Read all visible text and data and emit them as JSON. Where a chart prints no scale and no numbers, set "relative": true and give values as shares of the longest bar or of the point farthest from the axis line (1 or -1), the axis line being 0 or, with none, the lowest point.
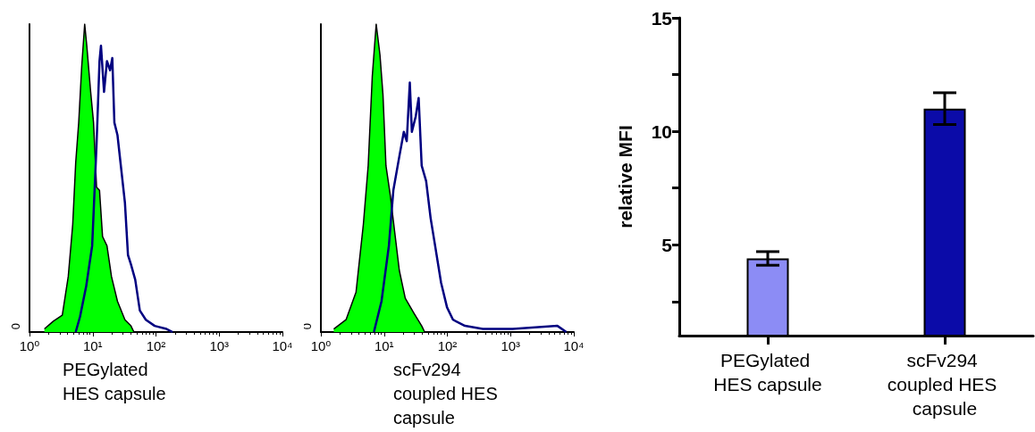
{
  "chart_data": [
    {
      "type": "area",
      "xlabel": "PEGylated HES capsule",
      "relative": true,
      "log": "x",
      "xlim": [
        1,
        10000
      ],
      "xticks": [
        {
          "value": 1,
          "label": "10⁰"
        },
        {
          "value": 10,
          "label": "10¹"
        },
        {
          "value": 100,
          "label": "10²"
        },
        {
          "value": 1000,
          "label": "10³"
        },
        {
          "value": 10000,
          "label": "10⁴"
        }
      ],
      "annotations": [
        "0"
      ],
      "grid": false,
      "series": [
        {
          "type": "area",
          "color": "#00ff00",
          "x": [
            1.72,
            2.38,
            3.3,
            4.1,
            4.83,
            5.38,
            6.0,
            6.69,
            7.46,
            8.05,
            9.27,
            10.3,
            11.5,
            12.8,
            14.3,
            16.8,
            19.8,
            24.6,
            32.3,
            40.2,
            44.8
          ],
          "values": [
            0.01,
            0.035,
            0.055,
            0.18,
            0.35,
            0.55,
            0.68,
            0.86,
            1,
            0.93,
            0.78,
            0.68,
            0.47,
            0.46,
            0.31,
            0.28,
            0.18,
            0.1,
            0.04,
            0.02,
            0
          ]
        },
        {
          "type": "line",
          "color": "#000080",
          "x": [
            5.38,
            6.3,
            7.9,
            9.8,
            11.5,
            12.8,
            13.5,
            15.1,
            16.8,
            18.8,
            20.4,
            22.0,
            24.6,
            27.5,
            32.3,
            36.1,
            40.2,
            47.0,
            55.6,
            69.1,
            95.5,
            147,
            183
          ],
          "values": [
            0,
            0.05,
            0.15,
            0.28,
            0.61,
            0.88,
            0.93,
            0.78,
            0.88,
            0.85,
            0.89,
            0.68,
            0.64,
            0.55,
            0.42,
            0.25,
            0.22,
            0.17,
            0.07,
            0.04,
            0.02,
            0.01,
            0
          ]
        }
      ]
    },
    {
      "type": "area",
      "xlabel": "scFv294 coupled HES capsule",
      "relative": true,
      "log": "x",
      "xlim": [
        1,
        10000
      ],
      "xticks": [
        {
          "value": 1,
          "label": "10⁰"
        },
        {
          "value": 10,
          "label": "10¹"
        },
        {
          "value": 100,
          "label": "10²"
        },
        {
          "value": 1000,
          "label": "10³"
        },
        {
          "value": 10000,
          "label": "10⁴"
        }
      ],
      "annotations": [
        "0"
      ],
      "grid": false,
      "series": [
        {
          "type": "area",
          "color": "#00ff00",
          "x": [
            1.6,
            2.5,
            3.6,
            4.7,
            5.6,
            6.5,
            7.5,
            8.6,
            9.6,
            10.7,
            12.6,
            14.8,
            17.4,
            21.6,
            29.9,
            39.3,
            43.8
          ],
          "values": [
            0.01,
            0.04,
            0.13,
            0.35,
            0.54,
            0.83,
            1,
            0.9,
            0.77,
            0.54,
            0.44,
            0.32,
            0.2,
            0.11,
            0.06,
            0.02,
            0
          ]
        },
        {
          "type": "line",
          "color": "#000080",
          "x": [
            6.9,
            9.1,
            11.9,
            14.0,
            17.4,
            20.5,
            22.8,
            25.5,
            27.5,
            31.6,
            35.2,
            39.3,
            46.2,
            54.4,
            64.1,
            79.6,
            98.9,
            123,
            190,
            364,
            1080,
            5510,
            7620
          ],
          "values": [
            0,
            0.1,
            0.28,
            0.46,
            0.57,
            0.65,
            0.62,
            0.81,
            0.65,
            0.7,
            0.76,
            0.54,
            0.49,
            0.37,
            0.28,
            0.16,
            0.08,
            0.04,
            0.02,
            0.01,
            0.01,
            0.02,
            0
          ]
        }
      ]
    },
    {
      "type": "bar",
      "ylabel": "relative MFI",
      "categories": [
        "PEGylated HES capsule",
        "scFv294 coupled HES capsule"
      ],
      "values": [
        4.4,
        11.0
      ],
      "errors": [
        0.3,
        0.7
      ],
      "colors": [
        "#8c8cf5",
        "#0b0ba8"
      ],
      "ylim": [
        1,
        15
      ],
      "yticks": [
        {
          "value": 2.5,
          "label": null
        },
        5,
        {
          "value": 7.5,
          "label": null
        },
        10,
        {
          "value": 12.5,
          "label": null
        },
        15
      ],
      "grid": false
    }
  ]
}
